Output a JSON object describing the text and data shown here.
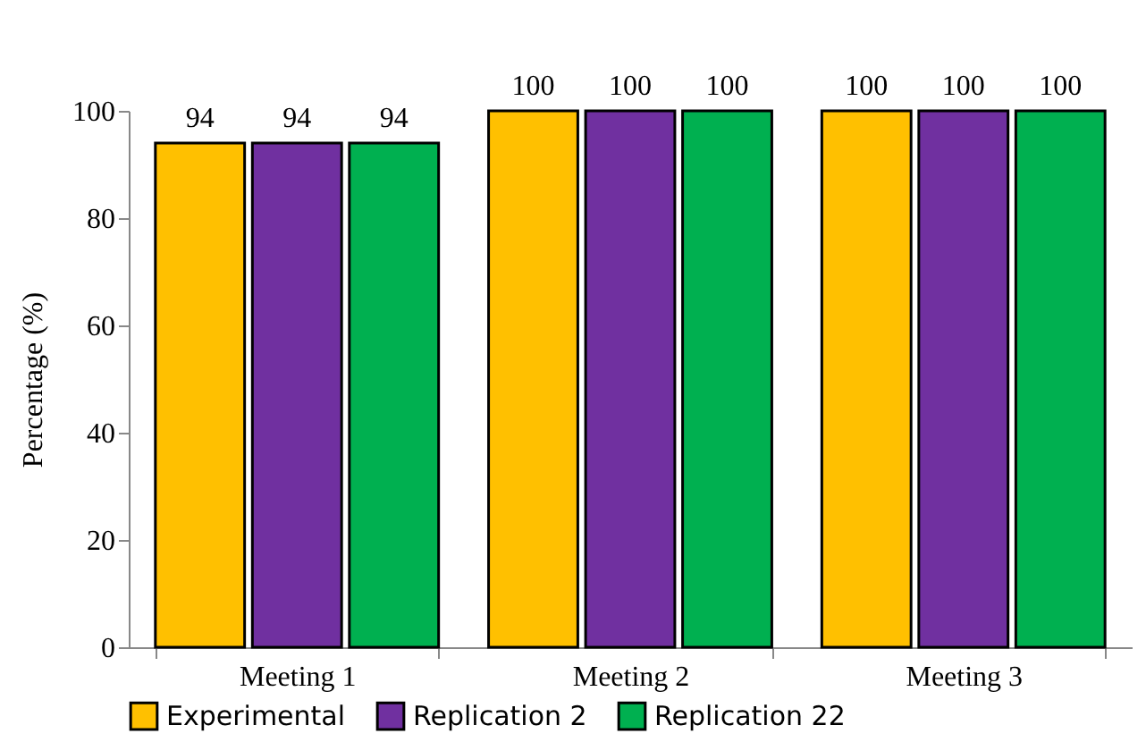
{
  "chart_data": {
    "type": "bar",
    "ylabel": "Percentage (%)",
    "categories": [
      "Meeting 1",
      "Meeting 2",
      "Meeting 3"
    ],
    "series": [
      {
        "name": "Experimental",
        "color": "#ffc000",
        "values": [
          94,
          100,
          100
        ]
      },
      {
        "name": "Replication 2",
        "color": "#7030a0",
        "values": [
          94,
          100,
          100
        ]
      },
      {
        "name": "Replication 22",
        "color": "#00b050",
        "values": [
          94,
          100,
          100
        ]
      }
    ],
    "ylim": [
      0,
      100
    ],
    "yticks": [
      0,
      20,
      40,
      60,
      80,
      100
    ],
    "grid": false,
    "legend": "bottom",
    "data_labels": true
  }
}
